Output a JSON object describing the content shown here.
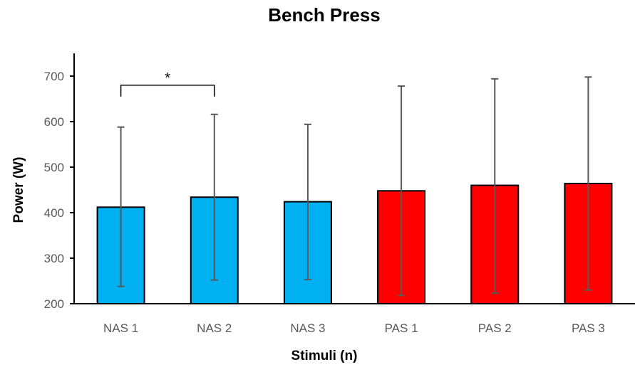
{
  "chart_data": {
    "type": "bar",
    "title": "Bench Press",
    "xlabel": "Stimuli (n)",
    "ylabel": "Power (W)",
    "ylim": [
      200,
      750
    ],
    "yticks": [
      200,
      300,
      400,
      500,
      600,
      700
    ],
    "grid": false,
    "legend": "none",
    "categories": [
      "NAS 1",
      "NAS 2",
      "NAS 3",
      "PAS 1",
      "PAS 2",
      "PAS 3"
    ],
    "values": [
      412,
      434,
      424,
      448,
      460,
      464
    ],
    "error_lower": [
      238,
      252,
      253,
      218,
      223,
      230
    ],
    "error_upper": [
      588,
      616,
      594,
      678,
      694,
      698
    ],
    "bar_colors": [
      "#00B0F0",
      "#00B0F0",
      "#00B0F0",
      "#FF0000",
      "#FF0000",
      "#FF0000"
    ],
    "significance": [
      {
        "from": "NAS 1",
        "to": "NAS 2",
        "label": "*",
        "at": 680
      }
    ]
  }
}
